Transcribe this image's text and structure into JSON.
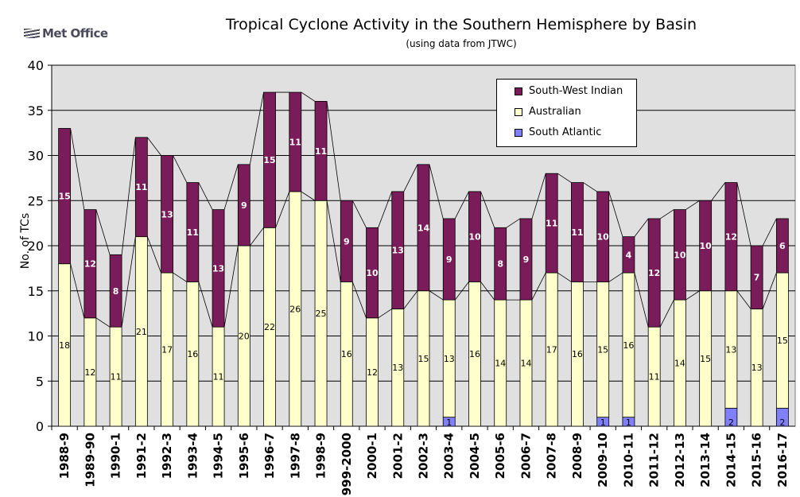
{
  "logo": {
    "text": "Met Office",
    "icon": "met-office-logo-icon"
  },
  "chart_data": {
    "type": "bar",
    "stacked": true,
    "title": "Tropical Cyclone Activity in the Southern Hemisphere by Basin",
    "subtitle": "(using data from JTWC)",
    "xlabel": "",
    "ylabel": "No. of TCs",
    "ylim": [
      0,
      40
    ],
    "yticks": [
      0,
      5,
      10,
      15,
      20,
      25,
      30,
      35,
      40
    ],
    "grid": true,
    "legend_position": "top-right",
    "categories": [
      "1988-9",
      "1989-90",
      "1990-1",
      "1991-2",
      "1992-3",
      "1993-4",
      "1994-5",
      "1995-6",
      "1996-7",
      "1997-8",
      "1998-9",
      "999-2000",
      "2000-1",
      "2001-2",
      "2002-3",
      "2003-4",
      "2004-5",
      "2005-6",
      "2006-7",
      "2007-8",
      "2008-9",
      "2009-10",
      "2010-11",
      "2011-12",
      "2012-13",
      "2013-14",
      "2014-15",
      "2015-16",
      "2016-17"
    ],
    "series": [
      {
        "name": "South Atlantic",
        "color": "#8080ff",
        "values": [
          0,
          0,
          0,
          0,
          0,
          0,
          0,
          0,
          0,
          0,
          0,
          0,
          0,
          0,
          0,
          1,
          0,
          0,
          0,
          0,
          0,
          1,
          1,
          0,
          0,
          0,
          2,
          0,
          2
        ]
      },
      {
        "name": "Australian",
        "color": "#ffffcc",
        "values": [
          18,
          12,
          11,
          21,
          17,
          16,
          11,
          20,
          22,
          26,
          25,
          16,
          12,
          13,
          15,
          13,
          16,
          14,
          14,
          17,
          16,
          15,
          16,
          11,
          14,
          15,
          13,
          13,
          15
        ]
      },
      {
        "name": "South-West Indian",
        "color": "#7a1b5a",
        "values": [
          15,
          12,
          8,
          11,
          13,
          11,
          13,
          9,
          15,
          11,
          11,
          9,
          10,
          13,
          14,
          9,
          10,
          8,
          9,
          11,
          11,
          10,
          4,
          12,
          10,
          10,
          12,
          7,
          6
        ]
      }
    ],
    "legend_order": [
      "South-West Indian",
      "Australian",
      "South Atlantic"
    ]
  }
}
